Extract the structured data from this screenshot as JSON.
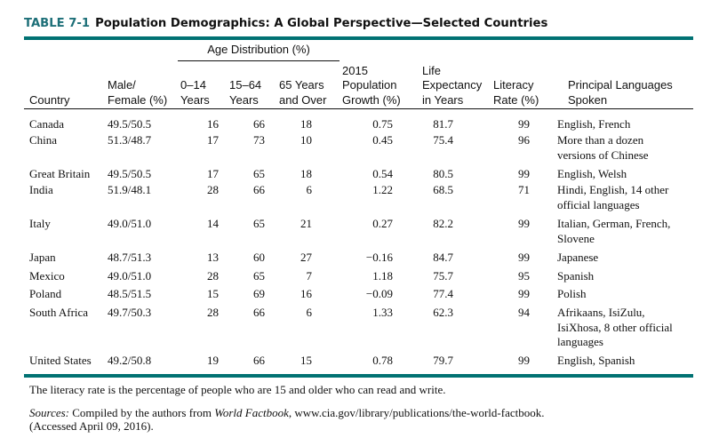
{
  "table": {
    "number": "TABLE 7-1",
    "title": "Population Demographics: A Global Perspective—Selected Countries",
    "group_header": "Age Distribution (%)",
    "columns": {
      "country": [
        "Country"
      ],
      "male_female": [
        "Male/",
        "Female (%)"
      ],
      "age_0_14": [
        "0–14",
        "Years"
      ],
      "age_15_64": [
        "15–64",
        "Years"
      ],
      "age_65_over": [
        "65 Years",
        "and Over"
      ],
      "growth": [
        "2015",
        "Population",
        "Growth (%)"
      ],
      "life_expectancy": [
        "Life",
        "Expectancy",
        "in Years"
      ],
      "literacy": [
        "Literacy",
        "Rate (%)"
      ],
      "languages": [
        "Principal Languages",
        "Spoken"
      ]
    },
    "rows": [
      {
        "country": "Canada",
        "male_female": "49.5/50.5",
        "age_0_14": "16",
        "age_15_64": "66",
        "age_65_over": "18",
        "growth": "0.75",
        "life_expectancy": "81.7",
        "literacy": "99",
        "languages": [
          "English, French"
        ]
      },
      {
        "country": "China",
        "male_female": "51.3/48.7",
        "age_0_14": "17",
        "age_15_64": "73",
        "age_65_over": "10",
        "growth": "0.45",
        "life_expectancy": "75.4",
        "literacy": "96",
        "languages": [
          "More than a dozen",
          "versions of Chinese"
        ]
      },
      {
        "country": "Great Britain",
        "male_female": "49.5/50.5",
        "age_0_14": "17",
        "age_15_64": "65",
        "age_65_over": "18",
        "growth": "0.54",
        "life_expectancy": "80.5",
        "literacy": "99",
        "languages": [
          "English, Welsh"
        ]
      },
      {
        "country": "India",
        "male_female": "51.9/48.1",
        "age_0_14": "28",
        "age_15_64": "66",
        "age_65_over": "6",
        "growth": "1.22",
        "life_expectancy": "68.5",
        "literacy": "71",
        "languages": [
          "Hindi, English, 14 other",
          "official languages"
        ]
      },
      {
        "country": "Italy",
        "male_female": "49.0/51.0",
        "age_0_14": "14",
        "age_15_64": "65",
        "age_65_over": "21",
        "growth": "0.27",
        "life_expectancy": "82.2",
        "literacy": "99",
        "languages": [
          "Italian, German, French,",
          "Slovene"
        ]
      },
      {
        "country": "Japan",
        "male_female": "48.7/51.3",
        "age_0_14": "13",
        "age_15_64": "60",
        "age_65_over": "27",
        "growth": "−0.16",
        "life_expectancy": "84.7",
        "literacy": "99",
        "languages": [
          "Japanese"
        ]
      },
      {
        "country": "Mexico",
        "male_female": "49.0/51.0",
        "age_0_14": "28",
        "age_15_64": "65",
        "age_65_over": "7",
        "growth": "1.18",
        "life_expectancy": "75.7",
        "literacy": "95",
        "languages": [
          "Spanish"
        ]
      },
      {
        "country": "Poland",
        "male_female": "48.5/51.5",
        "age_0_14": "15",
        "age_15_64": "69",
        "age_65_over": "16",
        "growth": "−0.09",
        "life_expectancy": "77.4",
        "literacy": "99",
        "languages": [
          "Polish"
        ]
      },
      {
        "country": "South Africa",
        "male_female": "49.7/50.3",
        "age_0_14": "28",
        "age_15_64": "66",
        "age_65_over": "6",
        "growth": "1.33",
        "life_expectancy": "62.3",
        "literacy": "94",
        "languages": [
          "Afrikaans, IsiZulu,",
          "IsiXhosa, 8 other official",
          "languages"
        ]
      },
      {
        "country": "United States",
        "male_female": "49.2/50.8",
        "age_0_14": "19",
        "age_15_64": "66",
        "age_65_over": "15",
        "growth": "0.78",
        "life_expectancy": "79.7",
        "literacy": "99",
        "languages": [
          "English, Spanish"
        ]
      }
    ]
  },
  "footnote": "The literacy rate is the percentage of people who are 15 and older who can read and write.",
  "sources": {
    "label": "Sources:",
    "text_before": " Compiled by the authors from ",
    "publication": "World Factbook",
    "text_after": ", www.cia.gov/library/publications/the-world-factbook.",
    "accessed": "(Accessed April 09, 2016)."
  },
  "colors": {
    "accent": "#017273",
    "text": "#111111"
  }
}
